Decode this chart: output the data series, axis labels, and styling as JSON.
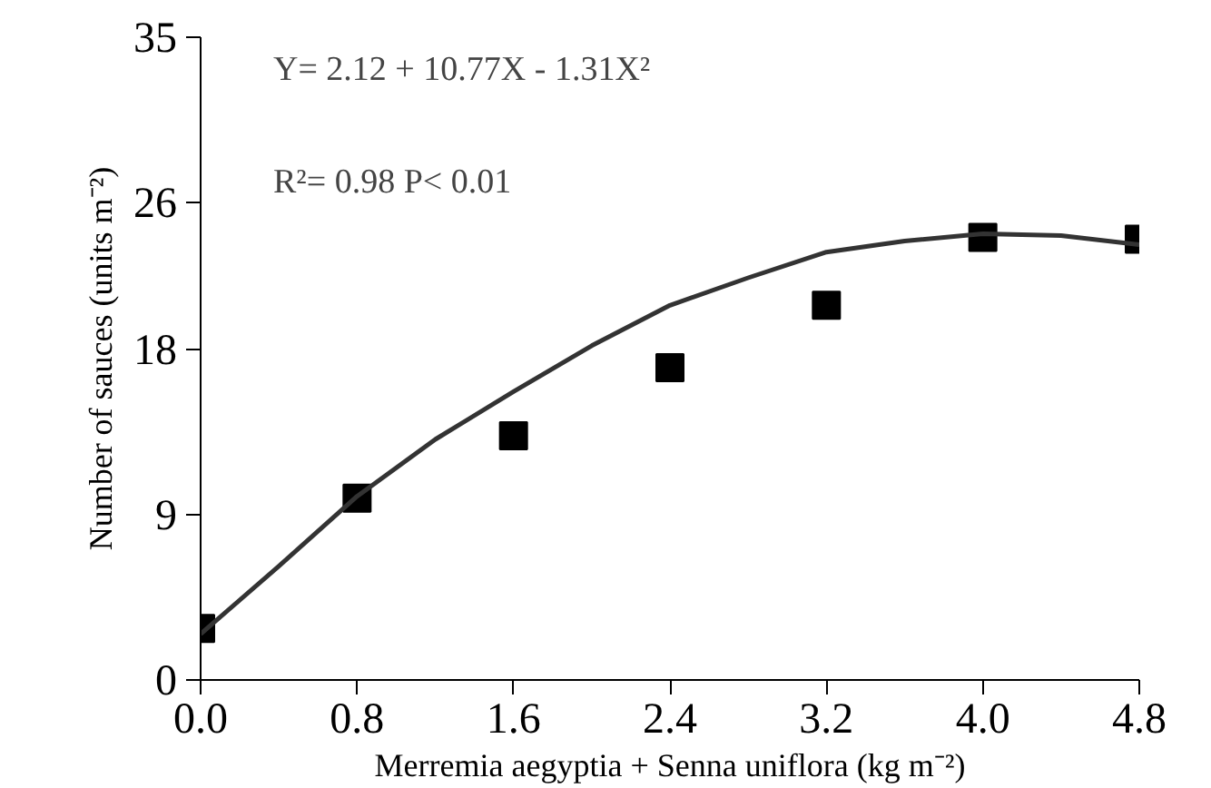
{
  "chart_data": {
    "type": "scatter",
    "xlabel": "Merremia aegyptia + Senna uniflora (kg m⁻²)",
    "ylabel": "Number of sauces (units m⁻²)",
    "x": [
      0.0,
      0.8,
      1.6,
      2.4,
      3.2,
      4.0,
      4.8
    ],
    "series": [
      {
        "color": "#000000",
        "marker": "square",
        "values": [
          2.8,
          9.9,
          13.3,
          17.0,
          20.4,
          24.1,
          24.0
        ]
      },
      {
        "type": "line",
        "color": "#333333",
        "line_style": "solid",
        "x": [
          0.0,
          0.4,
          0.8,
          1.2,
          1.6,
          2.0,
          2.4,
          2.8,
          3.2,
          3.6,
          4.0,
          4.4,
          4.8
        ],
        "values": [
          2.5,
          6.2,
          10.0,
          13.1,
          15.7,
          18.2,
          20.4,
          21.9,
          23.3,
          23.9,
          24.3,
          24.2,
          23.7
        ]
      }
    ],
    "xlim": [
      0,
      4.8
    ],
    "ylim": [
      0,
      35
    ],
    "xticks": [
      {
        "value": 0,
        "label": "0.0"
      },
      0.8,
      1.6,
      2.4,
      3.2,
      {
        "value": 4,
        "label": "4.0"
      },
      4.8
    ],
    "yticks": [
      0,
      9,
      18,
      26,
      35
    ],
    "grid": false,
    "annotations": [
      "Y= 2.12 + 10.77X - 1.31X²",
      "R²= 0.98  P< 0.01"
    ]
  }
}
